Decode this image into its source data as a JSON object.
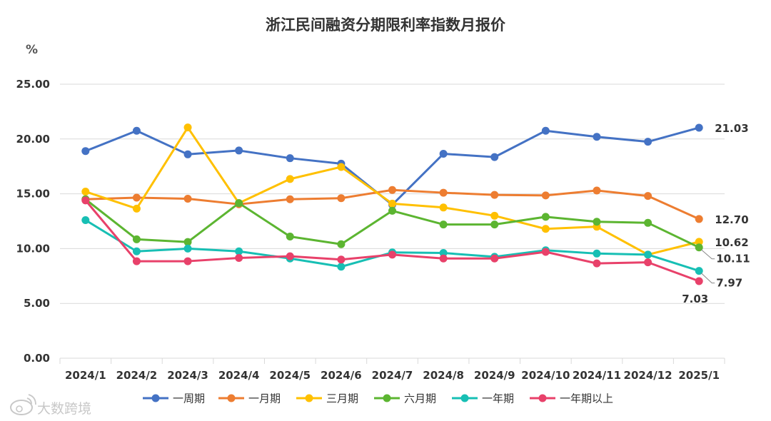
{
  "watermark": {
    "text": "大数跨境",
    "icon": "weibo-logo-icon"
  },
  "chart_data": {
    "type": "line",
    "title": "浙江民间融资分期限利率指数月报价",
    "unit": "%",
    "categories": [
      "2024/1",
      "2024/2",
      "2024/3",
      "2024/4",
      "2024/5",
      "2024/6",
      "2024/7",
      "2024/8",
      "2024/9",
      "2024/10",
      "2024/11",
      "2024/12",
      "2025/1"
    ],
    "y_ticks": [
      "0.00",
      "5.00",
      "10.00",
      "15.00",
      "20.00",
      "25.00"
    ],
    "ylim": [
      0,
      25
    ],
    "grid": true,
    "legend_position": "bottom",
    "series": [
      {
        "name": "一周期",
        "color": "#4472c4",
        "end_label": "21.03",
        "values": [
          18.9,
          20.75,
          18.6,
          18.95,
          18.25,
          17.75,
          14.0,
          18.65,
          18.35,
          20.75,
          20.2,
          19.75,
          21.03
        ]
      },
      {
        "name": "一月期",
        "color": "#ed7d31",
        "end_label": "12.70",
        "values": [
          14.5,
          14.65,
          14.55,
          14.05,
          14.5,
          14.6,
          15.35,
          15.1,
          14.9,
          14.85,
          15.3,
          14.8,
          12.7
        ]
      },
      {
        "name": "三月期",
        "color": "#ffc000",
        "end_label": "10.62",
        "values": [
          15.2,
          13.65,
          21.05,
          14.15,
          16.35,
          17.45,
          14.1,
          13.75,
          13.0,
          11.8,
          12.0,
          9.45,
          10.62
        ]
      },
      {
        "name": "六月期",
        "color": "#5cb531",
        "end_label": "10.11",
        "values": [
          14.5,
          10.85,
          10.6,
          14.15,
          11.1,
          10.4,
          13.45,
          12.2,
          12.2,
          12.9,
          12.45,
          12.35,
          10.11
        ]
      },
      {
        "name": "一年期",
        "color": "#17bfb4",
        "end_label": "7.97",
        "values": [
          12.6,
          9.75,
          10.0,
          9.75,
          9.1,
          8.35,
          9.65,
          9.6,
          9.25,
          9.85,
          9.55,
          9.45,
          7.97
        ]
      },
      {
        "name": "一年期以上",
        "color": "#e8416a",
        "end_label": "7.03",
        "values": [
          14.4,
          8.85,
          8.85,
          9.15,
          9.3,
          9.0,
          9.45,
          9.1,
          9.1,
          9.7,
          8.65,
          8.75,
          7.03
        ]
      }
    ]
  }
}
